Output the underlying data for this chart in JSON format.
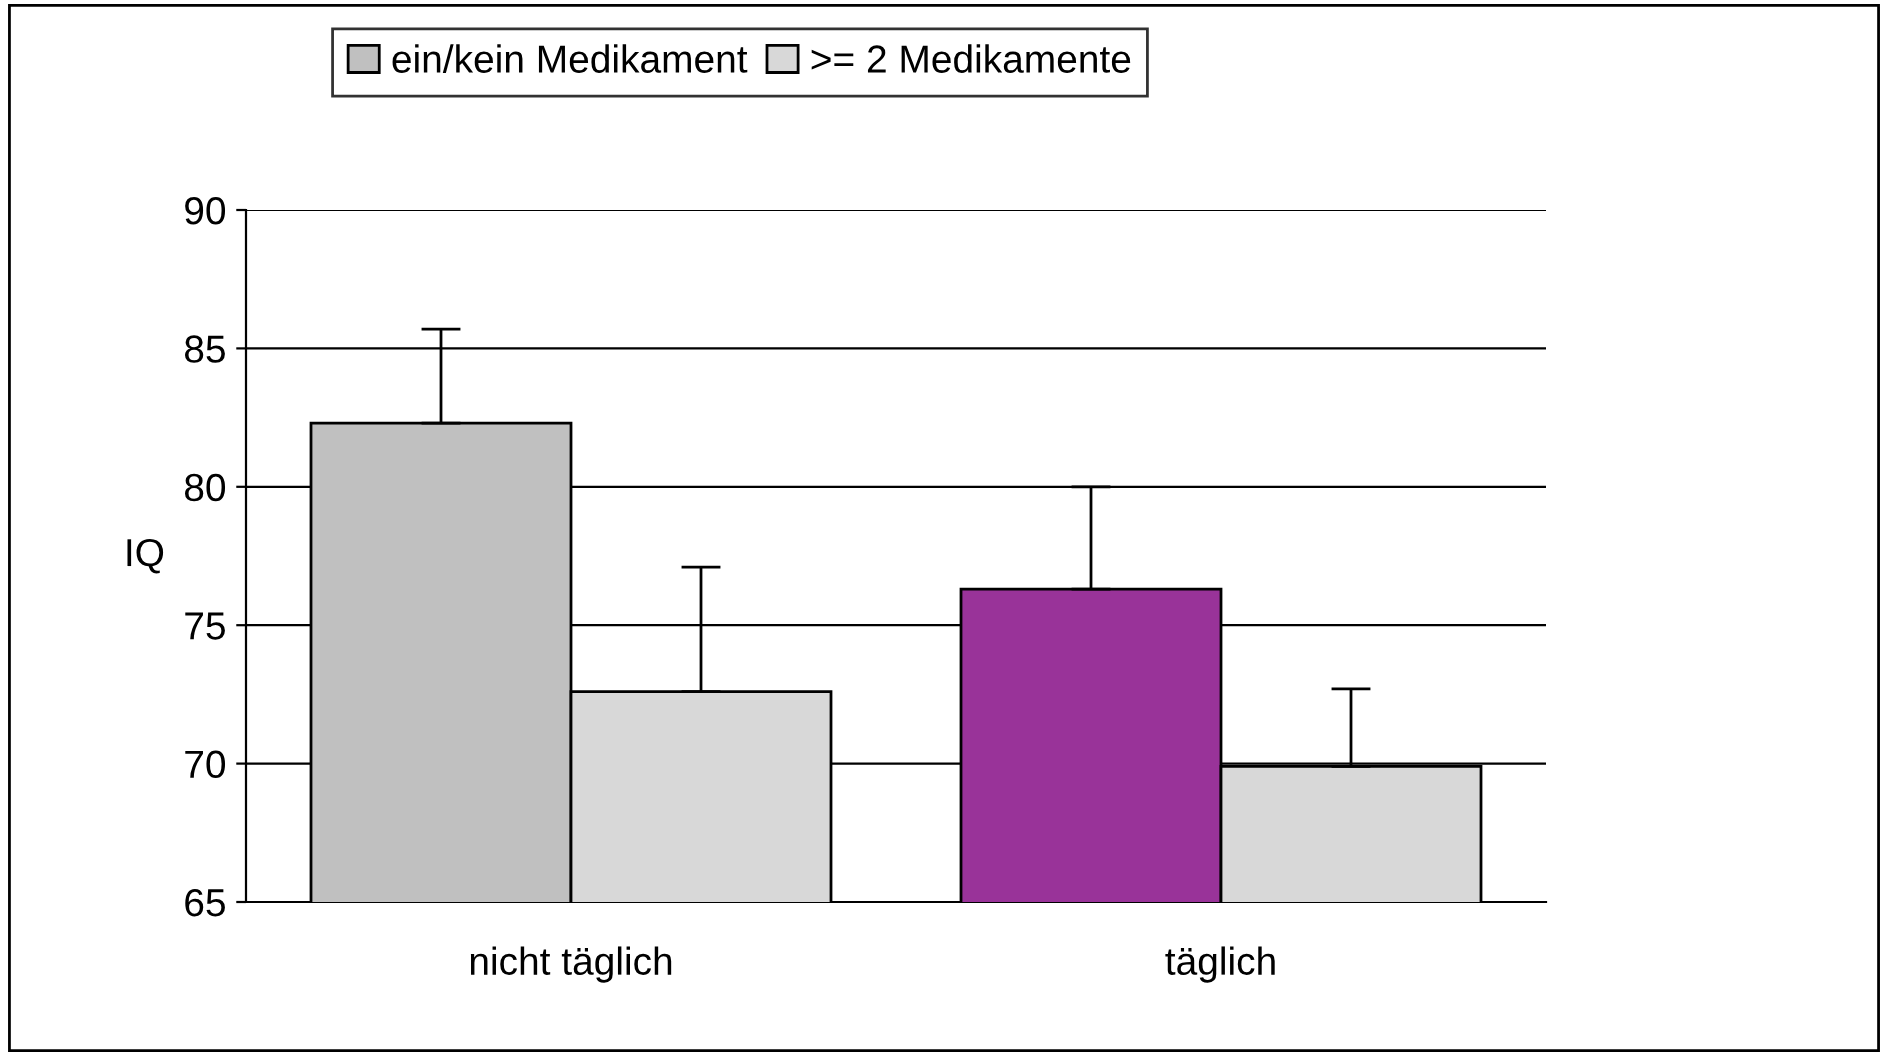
{
  "chart_data": {
    "type": "bar",
    "categories": [
      "nicht täglich",
      "täglich"
    ],
    "ylabel": "IQ",
    "series": [
      {
        "name": "ein/kein Medikament",
        "colors": [
          "#c0c0c0",
          "#993399"
        ],
        "values": [
          82.3,
          76.3
        ],
        "errors": [
          [
            82.3,
            85.7
          ],
          [
            76.3,
            80.0
          ]
        ]
      },
      {
        "name": ">= 2 Medikamente",
        "color": "#d8d8d8",
        "values": [
          72.6,
          69.9
        ],
        "errors": [
          [
            72.6,
            77.1
          ],
          [
            69.9,
            72.7
          ]
        ]
      }
    ],
    "ylim": [
      65,
      90
    ],
    "yticks": [
      65,
      70,
      75,
      80,
      85,
      90
    ],
    "grid": "y",
    "legend": "top"
  }
}
